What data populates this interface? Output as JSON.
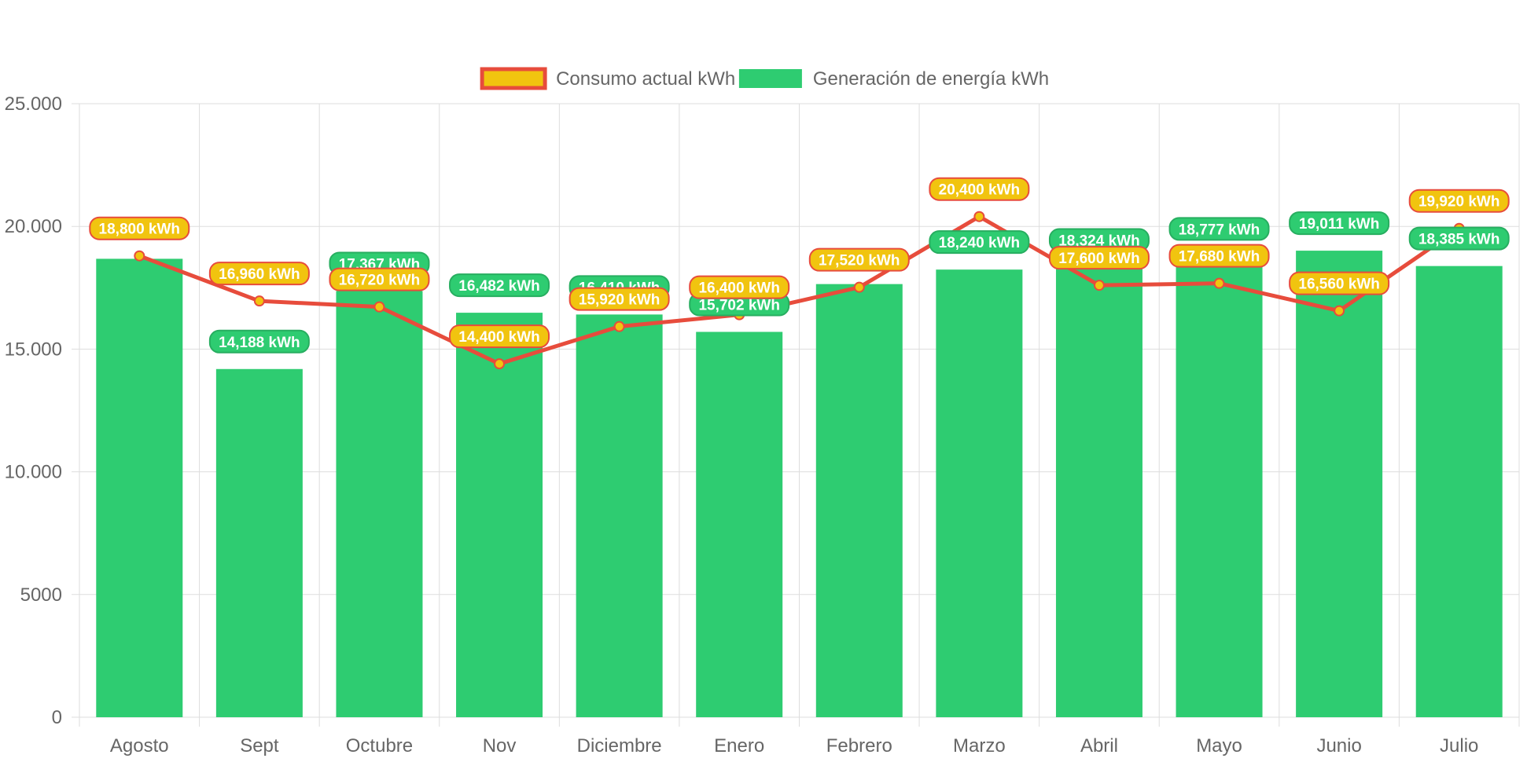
{
  "chart_data": {
    "type": "bar",
    "categories": [
      "Agosto",
      "Sept",
      "Octubre",
      "Nov",
      "Diciembre",
      "Enero",
      "Febrero",
      "Marzo",
      "Abril",
      "Mayo",
      "Junio",
      "Julio"
    ],
    "ylim": [
      0,
      25000
    ],
    "yticks": [
      {
        "value": 0,
        "label": "0"
      },
      {
        "value": 5000,
        "label": "5000"
      },
      {
        "value": 10000,
        "label": "10.000"
      },
      {
        "value": 15000,
        "label": "15.000"
      },
      {
        "value": 20000,
        "label": "20.000"
      },
      {
        "value": 25000,
        "label": "25.000"
      }
    ],
    "grid": true,
    "legend_position": "top",
    "series": [
      {
        "name": "Consumo actual kWh",
        "type": "line",
        "color": "#e74c3c",
        "fill": "#f1c40f",
        "values": [
          18800,
          16960,
          16720,
          14400,
          15920,
          16400,
          17520,
          20400,
          17600,
          17680,
          16560,
          19920
        ],
        "labels": [
          "18,800 kWh",
          "16,960 kWh",
          "16,720 kWh",
          "14,400 kWh",
          "15,920 kWh",
          "16,400 kWh",
          "17,520 kWh",
          "20,400 kWh",
          "17,600 kWh",
          "17,680 kWh",
          "16,560 kWh",
          "19,920 kWh"
        ]
      },
      {
        "name": "Generación de energía kWh",
        "type": "bar",
        "color": "#2ecc71",
        "values": [
          18680,
          14188,
          17367,
          16482,
          16410,
          15702,
          17650,
          18240,
          18324,
          18777,
          19011,
          18385
        ],
        "labels": [
          "",
          "14,188 kWh",
          "17,367 kWh",
          "16,482 kWh",
          "16,410 kWh",
          "15,702 kWh",
          "",
          "18,240 kWh",
          "18,324 kWh",
          "18,777 kWh",
          "19,011 kWh",
          "18,385 kWh"
        ]
      }
    ]
  }
}
